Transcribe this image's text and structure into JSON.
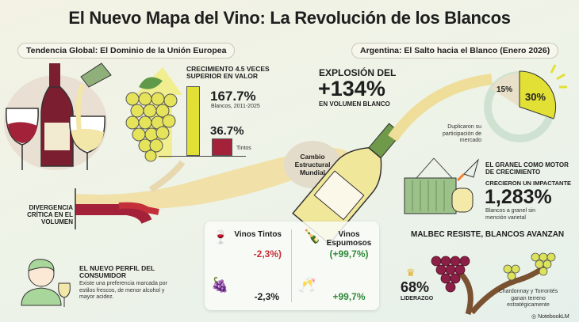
{
  "title": "El Nuevo Mapa del Vino: La Revolución de los Blancos",
  "left_section": {
    "pill": "Tendencia Global: El Dominio de la Unión Europea",
    "growth_heading": "CRECIMIENTO 4.5 VECES SUPERIOR EN VALOR",
    "whites_value": "167.7%",
    "whites_label": "Blancos, 2011-2025",
    "reds_value": "36.7%",
    "reds_label": "Tintos",
    "divergence": "DIVERGENCIA CRÍTICA EN EL VOLUMEN",
    "consumer_title": "EL NUEVO PERFIL DEL CONSUMIDOR",
    "consumer_text": "Existe una preferencia marcada por estilos frescos, de menor alcohol y mayor acidez."
  },
  "center": {
    "label": "Cambio Estructural Mundial"
  },
  "table": {
    "reds_label": "Vinos Tintos",
    "reds_value": "-2,3%)",
    "reds_value2": "-2,3%",
    "sparkling_label": "Vinos Espumosos",
    "sparkling_value": "(+99,7%)",
    "sparkling_value2": "+99,7%"
  },
  "right_section": {
    "pill": "Argentina: El Salto hacia el Blanco (Enero 2026)",
    "explosion_top": "EXPLOSIÓN DEL",
    "explosion_value": "+134%",
    "explosion_bottom": "EN VOLUMEN BLANCO",
    "share_before": "15%",
    "share_after": "30%",
    "share_caption": "Duplicaron su participación de mercado",
    "bulk_title": "EL GRANEL COMO MOTOR DE CRECIMIENTO",
    "bulk_sub": "CRECIERON UN IMPACTANTE",
    "bulk_value": "1,283%",
    "bulk_caption": "Blancos a granel sin mención varietal",
    "malbec_title": "MALBEC RESISTE, BLANCOS AVANZAN",
    "malbec_value": "68%",
    "malbec_label": "LIDERAZGO",
    "whites_caption": "Chardonnay y Torrontés ganan terreno estratégicamente"
  },
  "footer": {
    "brand": "NotebookLM"
  },
  "colors": {
    "red": "#a3223a",
    "yellow": "#e8e43a",
    "green": "#2f8a3a"
  }
}
